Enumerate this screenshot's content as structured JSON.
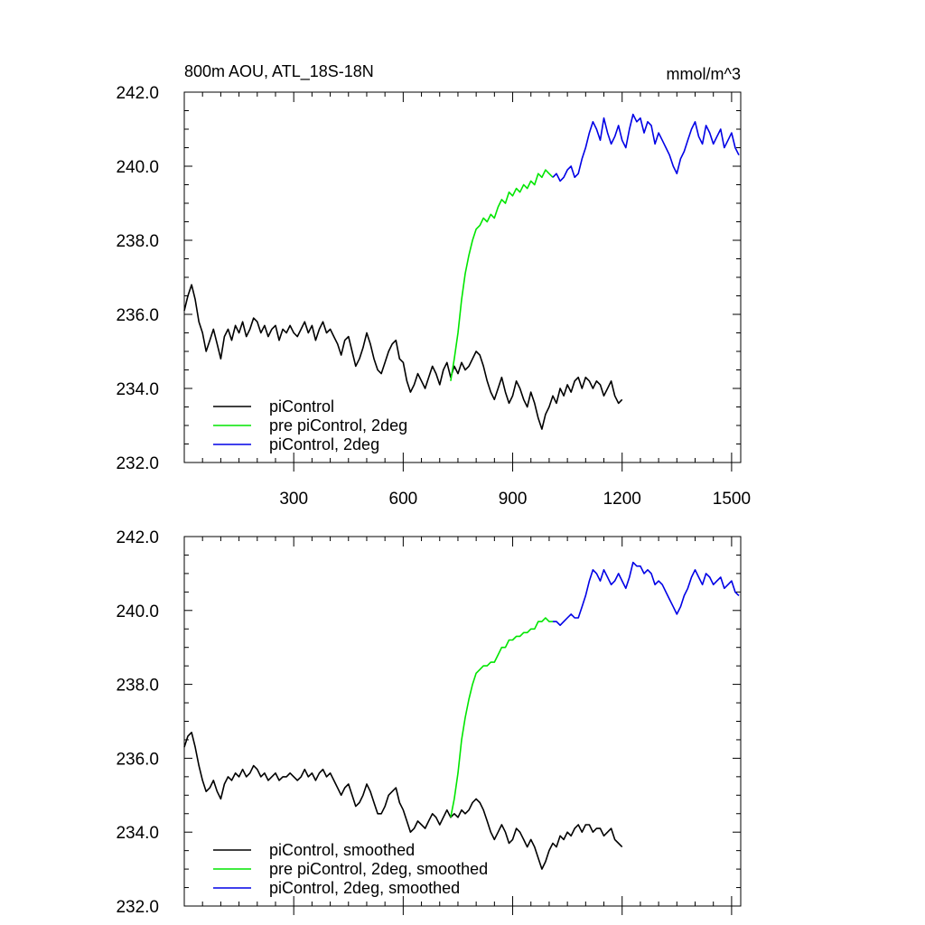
{
  "chart_data": [
    {
      "type": "line",
      "title": "800m AOU, ATL_18S-18N",
      "units": "mmol/m^3",
      "xlabel": "",
      "ylabel": "",
      "xlim": [
        0,
        1525
      ],
      "ylim": [
        232,
        242
      ],
      "xticks": [
        300,
        600,
        900,
        1200,
        1500
      ],
      "yticks": [
        232,
        234,
        236,
        238,
        240,
        242
      ],
      "ytick_labels": [
        "232.0",
        "234.0",
        "236.0",
        "238.0",
        "240.0",
        "242.0"
      ],
      "xtick_labels": [
        "300",
        "600",
        "900",
        "1200",
        "1500"
      ],
      "show_x_labels": true,
      "grid": false,
      "legend_position": "bottom-left",
      "series": [
        {
          "name": "piControl",
          "color": "#000000",
          "x": [
            0,
            10,
            20,
            30,
            40,
            50,
            60,
            70,
            80,
            90,
            100,
            110,
            120,
            130,
            140,
            150,
            160,
            170,
            180,
            190,
            200,
            210,
            220,
            230,
            240,
            250,
            260,
            270,
            280,
            290,
            300,
            310,
            320,
            330,
            340,
            350,
            360,
            370,
            380,
            390,
            400,
            410,
            420,
            430,
            440,
            450,
            460,
            470,
            480,
            490,
            500,
            510,
            520,
            530,
            540,
            550,
            560,
            570,
            580,
            590,
            600,
            610,
            620,
            630,
            640,
            650,
            660,
            670,
            680,
            690,
            700,
            710,
            720,
            730,
            740,
            750,
            760,
            770,
            780,
            790,
            800,
            810,
            820,
            830,
            840,
            850,
            860,
            870,
            880,
            890,
            900,
            910,
            920,
            930,
            940,
            950,
            960,
            970,
            980,
            990,
            1000,
            1010,
            1020,
            1030,
            1040,
            1050,
            1060,
            1070,
            1080,
            1090,
            1100,
            1110,
            1120,
            1130,
            1140,
            1150,
            1160,
            1170,
            1180,
            1190,
            1200
          ],
          "y": [
            236.1,
            236.5,
            236.8,
            236.4,
            235.8,
            235.5,
            235.0,
            235.3,
            235.6,
            235.2,
            234.8,
            235.4,
            235.6,
            235.3,
            235.7,
            235.5,
            235.8,
            235.4,
            235.6,
            235.9,
            235.8,
            235.5,
            235.7,
            235.4,
            235.6,
            235.7,
            235.3,
            235.6,
            235.5,
            235.7,
            235.5,
            235.4,
            235.6,
            235.8,
            235.5,
            235.7,
            235.3,
            235.6,
            235.8,
            235.5,
            235.6,
            235.4,
            235.2,
            234.9,
            235.3,
            235.4,
            235.0,
            234.6,
            234.8,
            235.1,
            235.5,
            235.2,
            234.8,
            234.5,
            234.4,
            234.7,
            235.0,
            235.2,
            235.3,
            234.8,
            234.7,
            234.2,
            233.9,
            234.1,
            234.4,
            234.2,
            234.0,
            234.3,
            234.6,
            234.4,
            234.1,
            234.5,
            234.7,
            234.3,
            234.6,
            234.4,
            234.7,
            234.5,
            234.6,
            234.8,
            235.0,
            234.9,
            234.6,
            234.2,
            233.9,
            233.7,
            234.0,
            234.3,
            233.9,
            233.6,
            233.8,
            234.2,
            234.0,
            233.7,
            233.5,
            233.9,
            233.6,
            233.2,
            232.9,
            233.3,
            233.5,
            233.8,
            233.6,
            234.0,
            233.8,
            234.1,
            233.9,
            234.2,
            234.3,
            234.0,
            234.3,
            234.2,
            234.0,
            234.2,
            234.1,
            233.8,
            234.0,
            234.2,
            233.8,
            233.6,
            233.7
          ]
        },
        {
          "name": "pre piControl, 2deg",
          "color": "#00e600",
          "x": [
            730,
            740,
            750,
            760,
            770,
            780,
            790,
            800,
            810,
            820,
            830,
            840,
            850,
            860,
            870,
            880,
            890,
            900,
            910,
            920,
            930,
            940,
            950,
            960,
            970,
            980,
            990,
            1000,
            1010
          ],
          "y": [
            234.2,
            234.8,
            235.5,
            236.4,
            237.1,
            237.6,
            238.0,
            238.3,
            238.4,
            238.6,
            238.5,
            238.7,
            238.6,
            238.9,
            239.1,
            239.0,
            239.3,
            239.2,
            239.4,
            239.3,
            239.5,
            239.4,
            239.6,
            239.5,
            239.8,
            239.7,
            239.9,
            239.8,
            239.7
          ]
        },
        {
          "name": "piControl, 2deg",
          "color": "#0000e6",
          "x": [
            1010,
            1020,
            1030,
            1040,
            1050,
            1060,
            1070,
            1080,
            1090,
            1100,
            1110,
            1120,
            1130,
            1140,
            1150,
            1160,
            1170,
            1180,
            1190,
            1200,
            1210,
            1220,
            1230,
            1240,
            1250,
            1260,
            1270,
            1280,
            1290,
            1300,
            1310,
            1320,
            1330,
            1340,
            1350,
            1360,
            1370,
            1380,
            1390,
            1400,
            1410,
            1420,
            1430,
            1440,
            1450,
            1460,
            1470,
            1480,
            1490,
            1500,
            1510,
            1520
          ],
          "y": [
            239.7,
            239.8,
            239.6,
            239.7,
            239.9,
            240.0,
            239.7,
            239.8,
            240.2,
            240.5,
            240.9,
            241.2,
            241.0,
            240.7,
            241.3,
            240.9,
            240.6,
            240.8,
            241.1,
            240.7,
            240.5,
            241.0,
            241.4,
            241.2,
            241.3,
            240.9,
            241.2,
            241.1,
            240.6,
            240.9,
            240.7,
            240.5,
            240.3,
            240.0,
            239.8,
            240.2,
            240.4,
            240.7,
            241.0,
            241.2,
            240.8,
            240.6,
            241.1,
            240.9,
            240.6,
            240.8,
            241.0,
            240.5,
            240.7,
            240.9,
            240.5,
            240.3
          ]
        }
      ]
    },
    {
      "type": "line",
      "title": "",
      "units": "",
      "xlabel": "",
      "ylabel": "",
      "xlim": [
        0,
        1525
      ],
      "ylim": [
        232,
        242
      ],
      "xticks": [
        300,
        600,
        900,
        1200,
        1500
      ],
      "yticks": [
        232,
        234,
        236,
        238,
        240,
        242
      ],
      "ytick_labels": [
        "232.0",
        "234.0",
        "236.0",
        "238.0",
        "240.0",
        "242.0"
      ],
      "xtick_labels": [],
      "show_x_labels": false,
      "grid": false,
      "legend_position": "bottom-left",
      "series": [
        {
          "name": "piControl, smoothed",
          "color": "#000000",
          "x": [
            0,
            10,
            20,
            30,
            40,
            50,
            60,
            70,
            80,
            90,
            100,
            110,
            120,
            130,
            140,
            150,
            160,
            170,
            180,
            190,
            200,
            210,
            220,
            230,
            240,
            250,
            260,
            270,
            280,
            290,
            300,
            310,
            320,
            330,
            340,
            350,
            360,
            370,
            380,
            390,
            400,
            410,
            420,
            430,
            440,
            450,
            460,
            470,
            480,
            490,
            500,
            510,
            520,
            530,
            540,
            550,
            560,
            570,
            580,
            590,
            600,
            610,
            620,
            630,
            640,
            650,
            660,
            670,
            680,
            690,
            700,
            710,
            720,
            730,
            740,
            750,
            760,
            770,
            780,
            790,
            800,
            810,
            820,
            830,
            840,
            850,
            860,
            870,
            880,
            890,
            900,
            910,
            920,
            930,
            940,
            950,
            960,
            970,
            980,
            990,
            1000,
            1010,
            1020,
            1030,
            1040,
            1050,
            1060,
            1070,
            1080,
            1090,
            1100,
            1110,
            1120,
            1130,
            1140,
            1150,
            1160,
            1170,
            1180,
            1190,
            1200
          ],
          "y": [
            236.3,
            236.6,
            236.7,
            236.3,
            235.8,
            235.4,
            235.1,
            235.2,
            235.4,
            235.1,
            234.9,
            235.3,
            235.5,
            235.4,
            235.6,
            235.5,
            235.7,
            235.5,
            235.6,
            235.8,
            235.7,
            235.5,
            235.6,
            235.4,
            235.5,
            235.6,
            235.4,
            235.5,
            235.5,
            235.6,
            235.5,
            235.4,
            235.5,
            235.7,
            235.5,
            235.6,
            235.4,
            235.6,
            235.7,
            235.5,
            235.6,
            235.4,
            235.2,
            235.0,
            235.2,
            235.3,
            235.0,
            234.7,
            234.8,
            235.0,
            235.3,
            235.1,
            234.8,
            234.5,
            234.5,
            234.7,
            235.0,
            235.1,
            235.2,
            234.8,
            234.6,
            234.3,
            234.0,
            234.1,
            234.3,
            234.2,
            234.1,
            234.3,
            234.5,
            234.4,
            234.2,
            234.4,
            234.6,
            234.4,
            234.5,
            234.4,
            234.6,
            234.5,
            234.6,
            234.8,
            234.9,
            234.8,
            234.6,
            234.3,
            234.0,
            233.8,
            234.0,
            234.2,
            234.0,
            233.7,
            233.8,
            234.1,
            234.0,
            233.8,
            233.6,
            233.8,
            233.6,
            233.3,
            233.0,
            233.2,
            233.5,
            233.7,
            233.6,
            233.9,
            233.8,
            234.0,
            233.9,
            234.1,
            234.2,
            234.0,
            234.2,
            234.2,
            234.0,
            234.1,
            234.1,
            233.9,
            234.0,
            234.1,
            233.8,
            233.7,
            233.6
          ]
        },
        {
          "name": "pre piControl, 2deg, smoothed",
          "color": "#00e600",
          "x": [
            730,
            740,
            750,
            760,
            770,
            780,
            790,
            800,
            810,
            820,
            830,
            840,
            850,
            860,
            870,
            880,
            890,
            900,
            910,
            920,
            930,
            940,
            950,
            960,
            970,
            980,
            990,
            1000,
            1010
          ],
          "y": [
            234.4,
            234.9,
            235.6,
            236.5,
            237.1,
            237.6,
            238.0,
            238.3,
            238.4,
            238.5,
            238.5,
            238.6,
            238.6,
            238.8,
            239.0,
            239.0,
            239.2,
            239.2,
            239.3,
            239.3,
            239.4,
            239.4,
            239.5,
            239.5,
            239.7,
            239.7,
            239.8,
            239.7,
            239.7
          ]
        },
        {
          "name": "piControl, 2deg, smoothed",
          "color": "#0000e6",
          "x": [
            1010,
            1020,
            1030,
            1040,
            1050,
            1060,
            1070,
            1080,
            1090,
            1100,
            1110,
            1120,
            1130,
            1140,
            1150,
            1160,
            1170,
            1180,
            1190,
            1200,
            1210,
            1220,
            1230,
            1240,
            1250,
            1260,
            1270,
            1280,
            1290,
            1300,
            1310,
            1320,
            1330,
            1340,
            1350,
            1360,
            1370,
            1380,
            1390,
            1400,
            1410,
            1420,
            1430,
            1440,
            1450,
            1460,
            1470,
            1480,
            1490,
            1500,
            1510,
            1520
          ],
          "y": [
            239.7,
            239.7,
            239.6,
            239.7,
            239.8,
            239.9,
            239.8,
            239.8,
            240.1,
            240.4,
            240.8,
            241.1,
            241.0,
            240.8,
            241.1,
            240.9,
            240.7,
            240.8,
            241.0,
            240.8,
            240.6,
            240.9,
            241.3,
            241.2,
            241.2,
            241.0,
            241.1,
            241.0,
            240.7,
            240.8,
            240.7,
            240.5,
            240.3,
            240.1,
            239.9,
            240.1,
            240.4,
            240.6,
            240.9,
            241.1,
            240.9,
            240.7,
            241.0,
            240.9,
            240.7,
            240.8,
            240.9,
            240.6,
            240.7,
            240.8,
            240.5,
            240.4
          ]
        }
      ]
    }
  ]
}
